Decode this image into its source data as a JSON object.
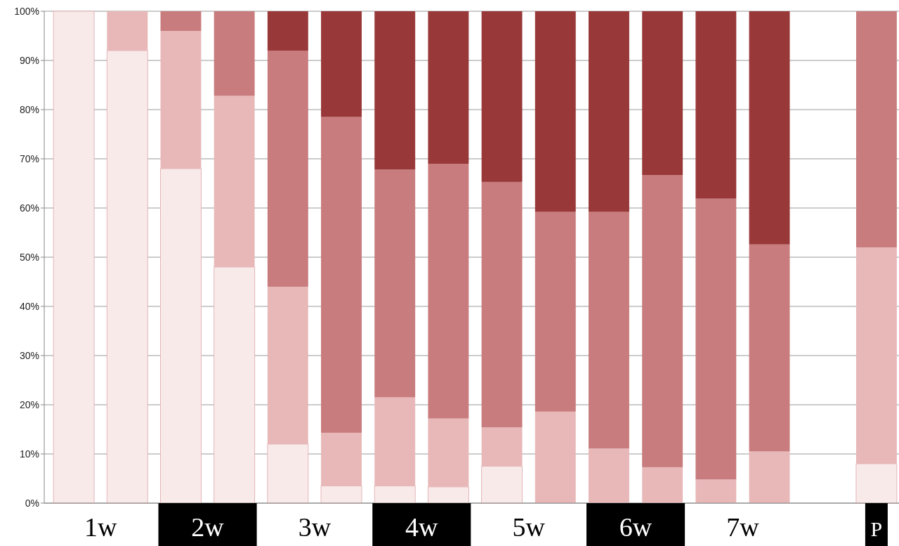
{
  "chart_data": {
    "type": "bar",
    "stacked": true,
    "categories": [
      "1w",
      null,
      "2w",
      null,
      "3w",
      null,
      "4w",
      null,
      "5w",
      null,
      "6w",
      null,
      "7w",
      null,
      null,
      "P"
    ],
    "series": [
      {
        "color": "#f9eaea",
        "values": [
          100,
          92,
          68,
          48,
          12,
          3.5,
          3.5,
          3.3,
          7.5,
          0,
          0,
          0,
          0,
          0,
          null,
          8
        ]
      },
      {
        "color": "#e8b8b9",
        "values": [
          0,
          8,
          28,
          34.8,
          32,
          10.8,
          18,
          13.9,
          7.9,
          18.6,
          11.1,
          7.3,
          4.8,
          10.5,
          null,
          44
        ]
      },
      {
        "color": "#c97c7d",
        "values": [
          0,
          0,
          4,
          17.2,
          48,
          64.2,
          46.3,
          51.8,
          49.9,
          40.6,
          48.1,
          59.4,
          57.1,
          42.1,
          null,
          48
        ]
      },
      {
        "color": "#983838",
        "values": [
          0,
          0,
          0,
          0,
          8,
          21.5,
          32.2,
          31,
          34.7,
          40.8,
          40.8,
          33.3,
          38.1,
          47.4,
          null,
          0
        ]
      }
    ],
    "ylim": [
      0,
      100
    ],
    "yticks": [
      {
        "value": 0,
        "label": "0%"
      },
      {
        "value": 10,
        "label": "10%"
      },
      {
        "value": 20,
        "label": "20%"
      },
      {
        "value": 30,
        "label": "30%"
      },
      {
        "value": 40,
        "label": "40%"
      },
      {
        "value": 50,
        "label": "50%"
      },
      {
        "value": 60,
        "label": "60%"
      },
      {
        "value": 70,
        "label": "70%"
      },
      {
        "value": 80,
        "label": "80%"
      },
      {
        "value": 90,
        "label": "90%"
      },
      {
        "value": 100,
        "label": "100%"
      }
    ],
    "grid": "y"
  }
}
